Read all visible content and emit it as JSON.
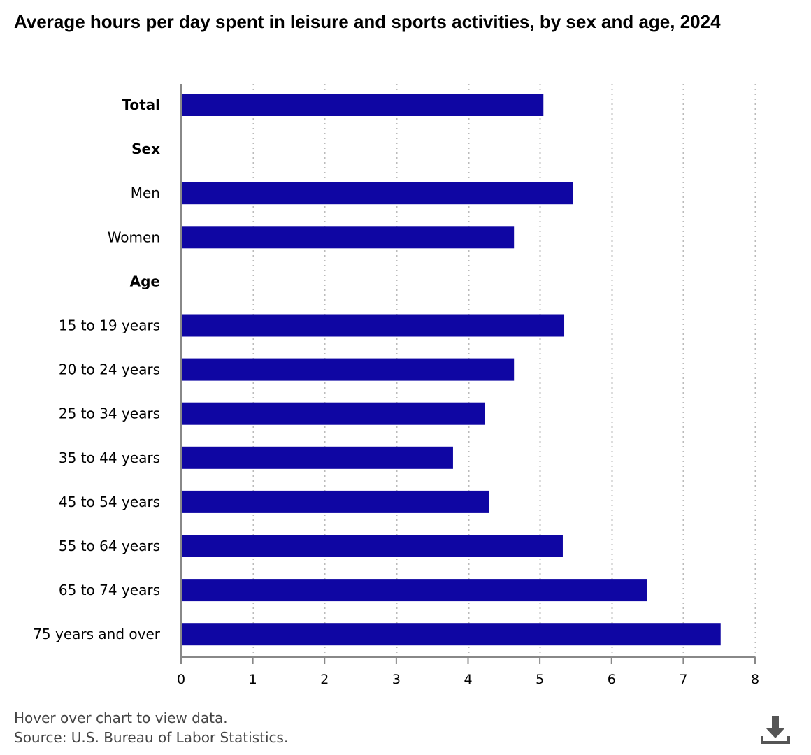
{
  "title": "Average hours per day spent in leisure and sports activities, by sex and age, 2024",
  "footer": {
    "hover_note": "Hover over chart to view data.",
    "source": "Source: U.S. Bureau of Labor Statistics."
  },
  "download": {
    "icon": "download-icon"
  },
  "colors": {
    "bar": "#0f06a3",
    "axis": "#888888",
    "grid": "#bbbbbb"
  },
  "chart_data": {
    "type": "bar",
    "orientation": "horizontal",
    "title": "Average hours per day spent in leisure and sports activities, by sex and age, 2024",
    "xlabel": "",
    "ylabel": "",
    "xlim": [
      0,
      8
    ],
    "xticks": [
      0,
      1,
      2,
      3,
      4,
      5,
      6,
      7,
      8
    ],
    "grid": "vertical dotted",
    "categories": [
      "Total",
      "Sex",
      "Men",
      "Women",
      "Age",
      "15 to 19 years",
      "20 to 24 years",
      "25 to 34 years",
      "35 to 44 years",
      "45 to 54 years",
      "55 to 64 years",
      "65 to 74 years",
      "75 years and over"
    ],
    "header_categories": [
      "Total",
      "Sex",
      "Age"
    ],
    "values": [
      5.05,
      null,
      5.46,
      4.64,
      null,
      5.34,
      4.64,
      4.23,
      3.79,
      4.29,
      5.32,
      6.49,
      7.52
    ]
  }
}
